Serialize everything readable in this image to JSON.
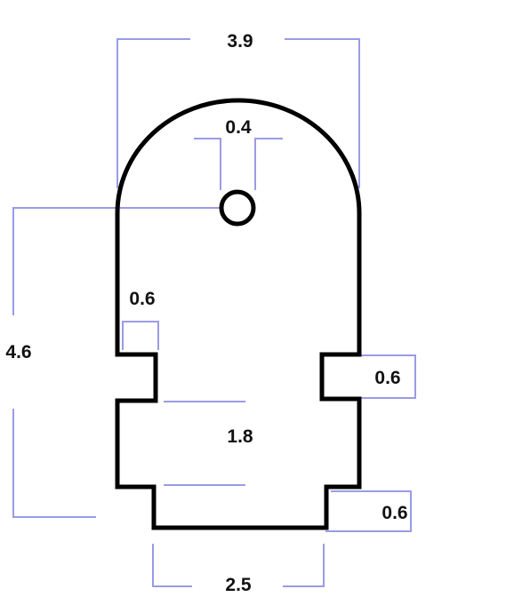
{
  "colors": {
    "outline": "#000000",
    "dimension": "#9b9be6",
    "text": "#111111"
  },
  "dimensions": {
    "top_width": "3.9",
    "hole_diameter": "0.4",
    "height": "4.6",
    "left_notch_width": "0.6",
    "right_notch_height": "0.6",
    "middle_height": "1.8",
    "bottom_step": "0.6",
    "bottom_width": "2.5"
  }
}
